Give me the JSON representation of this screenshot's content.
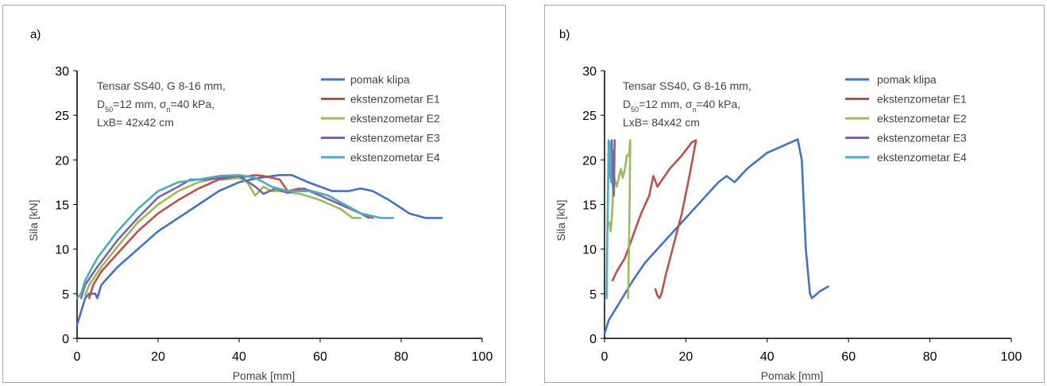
{
  "chart_data": [
    {
      "type": "line",
      "panel_label": "a)",
      "xlabel": "Pomak [mm]",
      "ylabel": "Sila [kN]",
      "xlim": [
        0,
        100
      ],
      "ylim": [
        0,
        30
      ],
      "xticks": [
        0,
        20,
        40,
        60,
        80,
        100
      ],
      "yticks": [
        0,
        5,
        10,
        15,
        20,
        25,
        30
      ],
      "legend_position": "top-right",
      "annotation": [
        "Tensar SS40, G 8-16 mm,",
        "D50=12 mm, σn=40 kPa,",
        "LxB= 42x42 cm"
      ],
      "series": [
        {
          "name": "pomak klipa",
          "color": "#4472c4",
          "points": [
            [
              0,
              1.5
            ],
            [
              1,
              3
            ],
            [
              2,
              4.5
            ],
            [
              3,
              5
            ],
            [
              4.5,
              5
            ],
            [
              5,
              4.5
            ],
            [
              6,
              6
            ],
            [
              8,
              7
            ],
            [
              10,
              8
            ],
            [
              15,
              10
            ],
            [
              20,
              12
            ],
            [
              25,
              13.5
            ],
            [
              30,
              15
            ],
            [
              35,
              16.5
            ],
            [
              40,
              17.5
            ],
            [
              45,
              18
            ],
            [
              50,
              18.3
            ],
            [
              53,
              18.3
            ],
            [
              57,
              17.5
            ],
            [
              60,
              17
            ],
            [
              63,
              16.5
            ],
            [
              67,
              16.5
            ],
            [
              70,
              16.8
            ],
            [
              73,
              16.5
            ],
            [
              77,
              15.5
            ],
            [
              82,
              14
            ],
            [
              86,
              13.5
            ],
            [
              90,
              13.5
            ]
          ]
        },
        {
          "name": "ekstenzometar E1",
          "color": "#c0504d",
          "points": [
            [
              3,
              4.5
            ],
            [
              4,
              6
            ],
            [
              6,
              7.5
            ],
            [
              10,
              9.5
            ],
            [
              15,
              12
            ],
            [
              20,
              14
            ],
            [
              25,
              15.5
            ],
            [
              30,
              16.8
            ],
            [
              35,
              17.8
            ],
            [
              40,
              18
            ],
            [
              44,
              18.3
            ],
            [
              46,
              18.2
            ],
            [
              50,
              17.8
            ],
            [
              52,
              16.5
            ],
            [
              55,
              16.8
            ],
            [
              58,
              16.5
            ],
            [
              62,
              16
            ],
            [
              66,
              15
            ],
            [
              70,
              14
            ],
            [
              73,
              13.5
            ]
          ]
        },
        {
          "name": "ekstenzometar E2",
          "color": "#9bbb59",
          "points": [
            [
              2,
              4.8
            ],
            [
              3,
              6
            ],
            [
              6,
              8
            ],
            [
              10,
              10.3
            ],
            [
              15,
              13
            ],
            [
              20,
              15
            ],
            [
              25,
              16.5
            ],
            [
              30,
              17.5
            ],
            [
              35,
              18
            ],
            [
              40,
              18
            ],
            [
              42,
              17.5
            ],
            [
              44,
              16
            ],
            [
              46,
              17
            ],
            [
              48,
              16.5
            ],
            [
              50,
              16.5
            ],
            [
              55,
              16.2
            ],
            [
              60,
              15.5
            ],
            [
              65,
              14.5
            ],
            [
              68,
              13.5
            ],
            [
              70,
              13.5
            ]
          ]
        },
        {
          "name": "ekstenzometar E3",
          "color": "#8064a2",
          "points": [
            [
              1,
              4.5
            ],
            [
              2,
              6
            ],
            [
              5,
              8
            ],
            [
              10,
              11
            ],
            [
              15,
              13.5
            ],
            [
              20,
              15.8
            ],
            [
              25,
              17
            ],
            [
              28,
              17.8
            ],
            [
              32,
              17.8
            ],
            [
              36,
              18
            ],
            [
              40,
              18.2
            ],
            [
              44,
              17
            ],
            [
              46,
              16.2
            ],
            [
              49,
              16.8
            ],
            [
              52,
              16.3
            ],
            [
              56,
              16.8
            ],
            [
              60,
              16
            ],
            [
              65,
              15
            ],
            [
              70,
              14
            ],
            [
              72,
              13.5
            ]
          ]
        },
        {
          "name": "ekstenzometar E4",
          "color": "#4bacc6",
          "points": [
            [
              0,
              4.5
            ],
            [
              1,
              5
            ],
            [
              2,
              6.5
            ],
            [
              5,
              9
            ],
            [
              10,
              12
            ],
            [
              15,
              14.5
            ],
            [
              20,
              16.5
            ],
            [
              25,
              17.5
            ],
            [
              30,
              17.8
            ],
            [
              35,
              18.2
            ],
            [
              40,
              18.3
            ],
            [
              44,
              18
            ],
            [
              48,
              17
            ],
            [
              52,
              16.5
            ],
            [
              54,
              16.5
            ],
            [
              58,
              16.5
            ],
            [
              62,
              16
            ],
            [
              66,
              15
            ],
            [
              70,
              14
            ],
            [
              75,
              13.5
            ],
            [
              78,
              13.5
            ]
          ]
        }
      ]
    },
    {
      "type": "line",
      "panel_label": "b)",
      "xlabel": "Pomak [mm]",
      "ylabel": "Sila [kN]",
      "xlim": [
        0,
        100
      ],
      "ylim": [
        0,
        30
      ],
      "xticks": [
        0,
        20,
        40,
        60,
        80,
        100
      ],
      "yticks": [
        0,
        5,
        10,
        15,
        20,
        25,
        30
      ],
      "legend_position": "top-right",
      "annotation": [
        "Tensar SS40, G 8-16 mm,",
        "D50=12 mm, σn=40 kPa,",
        "LxB= 84x42 cm"
      ],
      "series": [
        {
          "name": "pomak klipa",
          "color": "#4472c4",
          "points": [
            [
              0,
              0.5
            ],
            [
              1,
              2
            ],
            [
              3,
              3.5
            ],
            [
              5,
              5
            ],
            [
              7,
              6.5
            ],
            [
              10,
              8.5
            ],
            [
              15,
              11
            ],
            [
              20,
              13.5
            ],
            [
              25,
              16
            ],
            [
              28,
              17.5
            ],
            [
              30,
              18.2
            ],
            [
              32,
              17.5
            ],
            [
              35,
              19
            ],
            [
              40,
              20.8
            ],
            [
              42,
              21.2
            ],
            [
              45,
              21.8
            ],
            [
              47.5,
              22.3
            ],
            [
              48.5,
              20
            ],
            [
              49.5,
              10
            ],
            [
              50.5,
              5
            ],
            [
              51,
              4.5
            ],
            [
              53,
              5.3
            ],
            [
              55,
              5.8
            ]
          ]
        },
        {
          "name": "ekstenzometar E1",
          "color": "#c0504d",
          "points": [
            [
              12.5,
              5.5
            ],
            [
              13,
              4.8
            ],
            [
              13.5,
              4.5
            ],
            [
              14,
              5
            ],
            [
              15,
              7
            ],
            [
              17,
              10.5
            ],
            [
              19,
              14
            ],
            [
              21,
              18.5
            ],
            [
              22.5,
              22.2
            ],
            [
              21.5,
              22
            ],
            [
              19,
              20.5
            ],
            [
              16,
              19
            ],
            [
              13,
              17
            ],
            [
              12,
              18.2
            ],
            [
              11,
              16
            ],
            [
              9,
              14
            ],
            [
              7,
              11.5
            ],
            [
              5,
              9
            ],
            [
              3,
              7.5
            ],
            [
              2,
              6.5
            ]
          ]
        },
        {
          "name": "ekstenzometar E2",
          "color": "#9bbb59",
          "points": [
            [
              5.8,
              4.5
            ],
            [
              6,
              10
            ],
            [
              6.2,
              16
            ],
            [
              6.3,
              22.2
            ],
            [
              6,
              20.5
            ],
            [
              5.5,
              20.5
            ],
            [
              5,
              19
            ],
            [
              4.5,
              18
            ],
            [
              4,
              19
            ],
            [
              3.5,
              18
            ],
            [
              3,
              17
            ],
            [
              2.5,
              17.8
            ],
            [
              2.2,
              18.5
            ],
            [
              2,
              15
            ],
            [
              1.7,
              13
            ],
            [
              1.5,
              12
            ],
            [
              1.2,
              13
            ]
          ]
        },
        {
          "name": "ekstenzometar E3",
          "color": "#8064a2",
          "points": [
            [
              1.8,
              22.2
            ],
            [
              2,
              17.5
            ],
            [
              2.3,
              16
            ],
            [
              2.5,
              22.2
            ],
            [
              2.4,
              20
            ],
            [
              2.2,
              17.5
            ],
            [
              2,
              21
            ]
          ]
        },
        {
          "name": "ekstenzometar E4",
          "color": "#4bacc6",
          "points": [
            [
              0.5,
              4.5
            ],
            [
              0.7,
              12
            ],
            [
              0.9,
              18
            ],
            [
              1,
              22.2
            ],
            [
              1.2,
              18
            ],
            [
              1.4,
              22
            ],
            [
              1.6,
              17.5
            ]
          ]
        }
      ]
    }
  ]
}
